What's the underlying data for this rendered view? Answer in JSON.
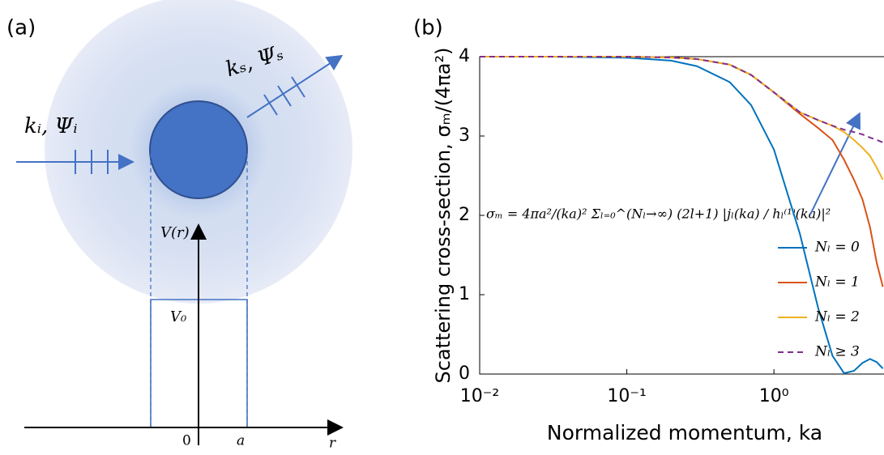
{
  "panel_labels": [
    "(a)",
    "(b)"
  ],
  "panel_a": {
    "incident": "kᵢ, Ψᵢ",
    "scattered": "kₛ, Ψₛ",
    "potential_axis": "V(r)",
    "potential_value": "V₀",
    "origin": "0",
    "radius": "a",
    "r_axis": "r"
  },
  "chart_data": {
    "type": "line",
    "equation": "σₘ = 4πa²/(ka)² Σₗ₌₀^(Nₗ→∞) (2l+1) |jₗ(ka) / hₗ⁽¹⁾(ka)|²",
    "x_label": "Normalized momentum, ka",
    "y_label": "Scattering cross-section, σₘ/(4πa²)",
    "log_x": true,
    "legend": "lower right",
    "xlim": [
      0.01,
      5.6
    ],
    "ylim": [
      0,
      4
    ],
    "xticks": [
      {
        "value": 0.01,
        "label": "10⁻²"
      },
      {
        "value": 0.1,
        "label": "10⁻¹"
      },
      {
        "value": 1,
        "label": "10⁰"
      }
    ],
    "yticks": [
      0,
      1,
      2,
      3,
      4
    ],
    "x": [
      0.01,
      0.03,
      0.1,
      0.2,
      0.3,
      0.5,
      0.7,
      1,
      1.5,
      2,
      2.5,
      3,
      3.5,
      4,
      4.5,
      5,
      5.5
    ],
    "series": [
      {
        "name": "Nₗ = 0",
        "color": "#0072bd",
        "dash": false,
        "values": [
          4,
          4,
          3.987,
          3.95,
          3.88,
          3.68,
          3.39,
          2.83,
          1.77,
          0.83,
          0.23,
          0.01,
          0.04,
          0.14,
          0.19,
          0.15,
          0.07
        ]
      },
      {
        "name": "Nₗ = 1",
        "color": "#d95319",
        "dash": false,
        "values": [
          4,
          4,
          4,
          3.99,
          3.97,
          3.9,
          3.77,
          3.55,
          3.28,
          3.1,
          2.95,
          2.7,
          2.45,
          2.2,
          1.85,
          1.4,
          1.1
        ]
      },
      {
        "name": "Nₗ = 2",
        "color": "#edb120",
        "dash": false,
        "values": [
          4,
          4,
          4,
          3.99,
          3.97,
          3.9,
          3.77,
          3.55,
          3.3,
          3.2,
          3.13,
          3.05,
          2.95,
          2.85,
          2.75,
          2.6,
          2.45
        ]
      },
      {
        "name": "Nₗ ≥ 3",
        "color": "#7e2f8e",
        "dash": true,
        "values": [
          4,
          4,
          4,
          3.99,
          3.97,
          3.9,
          3.77,
          3.55,
          3.3,
          3.2,
          3.13,
          3.08,
          3.05,
          3.02,
          2.98,
          2.95,
          2.92
        ]
      }
    ]
  }
}
